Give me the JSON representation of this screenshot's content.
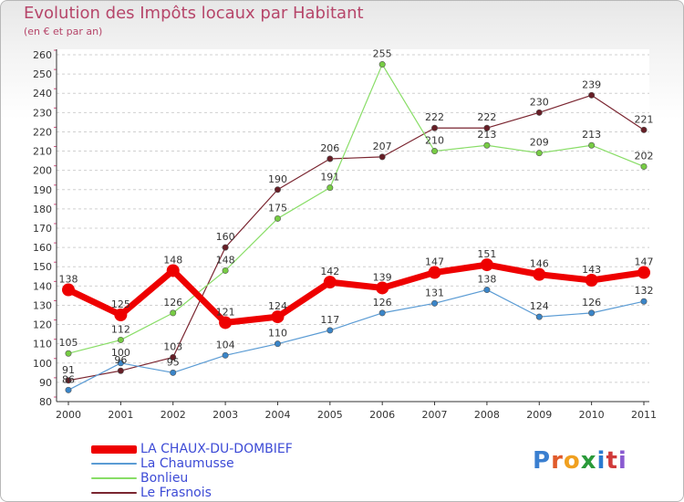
{
  "header": {
    "title": "Evolution des Impôts locaux par Habitant",
    "subtitle": "(en € et par an)"
  },
  "logo": {
    "text": "Proxiti",
    "letter_colors": [
      "#3a7fd0",
      "#e05a2a",
      "#f0a020",
      "#2a9a3a",
      "#2a7ad0",
      "#d03a3a",
      "#8a5ad0"
    ]
  },
  "chart_data": {
    "type": "line",
    "title": "Evolution des Impôts locaux par Habitant",
    "subtitle": "(en € et par an)",
    "xlabel": "",
    "ylabel": "",
    "categories": [
      "2000",
      "2001",
      "2002",
      "2003",
      "2004",
      "2005",
      "2006",
      "2007",
      "2008",
      "2009",
      "2010",
      "2011"
    ],
    "ylim": [
      80,
      260
    ],
    "yticks": [
      80,
      90,
      100,
      110,
      120,
      130,
      140,
      150,
      160,
      170,
      180,
      190,
      200,
      210,
      220,
      230,
      240,
      250,
      260
    ],
    "grid": "horizontal dashed",
    "legend_position": "bottom-left",
    "series": [
      {
        "name": "LA CHAUX-DU-DOMBIEF",
        "color": "#ee0000",
        "marker": "#ee0000",
        "values": [
          138,
          125,
          148,
          121,
          124,
          142,
          139,
          147,
          151,
          146,
          143,
          147
        ]
      },
      {
        "name": "La Chaumusse",
        "color": "#5a9bd4",
        "marker": "#3a85c8",
        "values": [
          86,
          100,
          95,
          104,
          110,
          117,
          126,
          131,
          138,
          124,
          126,
          132
        ]
      },
      {
        "name": "Bonlieu",
        "color": "#88dd66",
        "marker": "#77cc44",
        "values": [
          105,
          112,
          126,
          148,
          175,
          191,
          255,
          210,
          213,
          209,
          213,
          202
        ]
      },
      {
        "name": "Le Frasnois",
        "color": "#7a2530",
        "marker": "#661e26",
        "values": [
          91,
          96,
          103,
          160,
          190,
          206,
          207,
          222,
          222,
          230,
          239,
          221
        ]
      }
    ]
  }
}
